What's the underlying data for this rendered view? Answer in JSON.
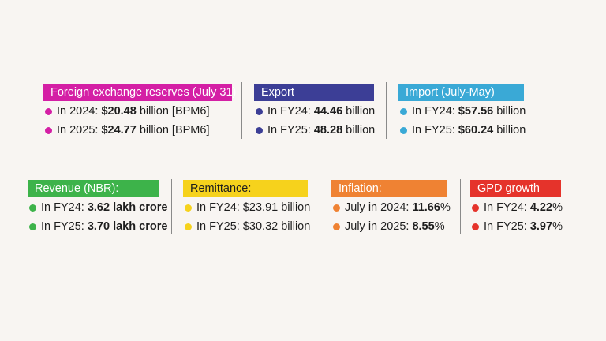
{
  "colors": {
    "magenta": "#d41fa5",
    "navy": "#3c3e96",
    "sky": "#3aa9d6",
    "green": "#3db34a",
    "yellow": "#f6d21c",
    "orange": "#ef8233",
    "red": "#e5332b"
  },
  "cards": {
    "fx": {
      "title": "Foreign exchange reserves (July 31)",
      "r1_pre": "In 2024: ",
      "r1_val": "$20.48",
      "r1_post": " billion [BPM6]",
      "r2_pre": "In 2025: ",
      "r2_val": "$24.77",
      "r2_post": " billion [BPM6]"
    },
    "export": {
      "title": "Export",
      "r1_pre": "In FY24: ",
      "r1_val": "44.46",
      "r1_post": " billion",
      "r2_pre": "In FY25: ",
      "r2_val": "48.28",
      "r2_post": " billion"
    },
    "import": {
      "title": "Import (July-May)",
      "r1_pre": "In FY24: ",
      "r1_val": "$57.56",
      "r1_post": " billion",
      "r2_pre": "In FY25: ",
      "r2_val": "$60.24",
      "r2_post": " billion"
    },
    "revenue": {
      "title": "Revenue (NBR):",
      "r1_pre": "In FY24: ",
      "r1_val": "3.62 lakh crore",
      "r1_post": "",
      "r2_pre": "In FY25: ",
      "r2_val": "3.70 lakh crore",
      "r2_post": ""
    },
    "remittance": {
      "title": "Remittance:",
      "r1_pre": "In FY24: ",
      "r1_val": "",
      "r1_post": "$23.91 billion",
      "r2_pre": "In FY25: ",
      "r2_val": "",
      "r2_post": "$30.32 billion"
    },
    "inflation": {
      "title": "Inflation:",
      "r1_pre": "July in 2024: ",
      "r1_val": "11.66",
      "r1_post": "%",
      "r2_pre": "July in 2025: ",
      "r2_val": "8.55",
      "r2_post": "%"
    },
    "gdp": {
      "title": "GPD growth",
      "r1_pre": "In FY24: ",
      "r1_val": "4.22",
      "r1_post": "%",
      "r2_pre": "In FY25:  ",
      "r2_val": "3.97",
      "r2_post": "%"
    }
  }
}
